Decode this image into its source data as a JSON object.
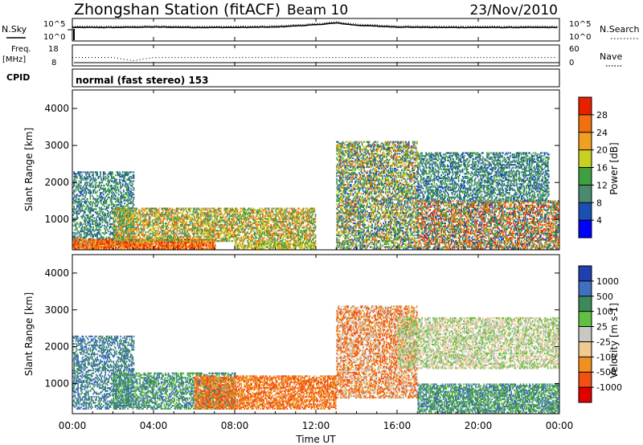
{
  "header": {
    "station": "Zhongshan Station (fitACF)",
    "beam": "Beam 10",
    "date": "23/Nov/2010",
    "cpid_label": "CPID",
    "mode_text": "normal (fast stereo) 153"
  },
  "noise_panel": {
    "left_label": "N.Sky",
    "right_label": "N.Search",
    "left_ticks": [
      "10^5",
      "10^0"
    ],
    "right_ticks": [
      "10^5",
      "10^0"
    ]
  },
  "freq_panel": {
    "left_label_1": "Freq.",
    "left_label_2": "[MHz]",
    "right_label": "Nave",
    "left_ticks": [
      "18",
      "8"
    ],
    "right_ticks": [
      "60",
      "0"
    ]
  },
  "x_axis": {
    "label": "Time UT",
    "ticks": [
      "00:00",
      "04:00",
      "08:00",
      "12:00",
      "16:00",
      "20:00",
      "00:00"
    ]
  },
  "y_axis": {
    "label": "Slant Range [km]",
    "ticks": [
      "1000",
      "2000",
      "3000",
      "4000"
    ]
  },
  "power_scale": {
    "label": "Power [dB]",
    "ticks": [
      "4",
      "8",
      "12",
      "16",
      "20",
      "24",
      "28"
    ],
    "colors": [
      "#0000ff",
      "#1a4fb4",
      "#4a8a6e",
      "#3ea03e",
      "#c8d020",
      "#f0a020",
      "#f07010",
      "#e82000"
    ]
  },
  "velocity_scale": {
    "label": "Velocity [m s-1]",
    "ticks": [
      "1000",
      "500",
      "100",
      "25",
      "-25",
      "-100",
      "-500",
      "-1000"
    ],
    "colors": [
      "#2040b0",
      "#4070c0",
      "#3c8a5a",
      "#60c040",
      "#c8c8c0",
      "#f0c890",
      "#f09020",
      "#f05010",
      "#e00000"
    ]
  },
  "chart_data": [
    {
      "type": "line",
      "title": "N.Sky / N.Search",
      "x": [
        0,
        2,
        4,
        6,
        8,
        10,
        12,
        13,
        14,
        16,
        18,
        20,
        22,
        24
      ],
      "series": [
        {
          "name": "N.Sky",
          "values": [
            3.0,
            3.0,
            3.1,
            3.0,
            3.0,
            3.1,
            3.6,
            4.0,
            3.5,
            3.1,
            3.0,
            3.0,
            3.0,
            3.0
          ]
        }
      ],
      "ylim": [
        0,
        5
      ]
    },
    {
      "type": "scatter",
      "title": "Freq / Nave",
      "x": [
        0,
        2,
        3,
        4,
        6,
        8,
        12,
        16,
        20,
        24
      ],
      "series": [
        {
          "name": "Freq.",
          "values": [
            12,
            12,
            10.5,
            12,
            12,
            12,
            12,
            12,
            12,
            12
          ]
        }
      ],
      "ylim": [
        8,
        18
      ]
    },
    {
      "type": "heatmap",
      "title": "Power",
      "xlabel": "Time UT",
      "ylabel": "Slant Range [km]",
      "xlim": [
        0,
        24
      ],
      "ylim": [
        180,
        4500
      ],
      "colorbar_label": "Power [dB]",
      "regions": [
        {
          "t0": 0.0,
          "t1": 3.0,
          "r0": 300,
          "r1": 2300,
          "density": 0.45,
          "levels": [
            4,
            8,
            12
          ]
        },
        {
          "t0": 0.0,
          "t1": 7.0,
          "r0": 200,
          "r1": 450,
          "density": 0.85,
          "levels": [
            20,
            24,
            28
          ]
        },
        {
          "t0": 2.0,
          "t1": 12.0,
          "r0": 400,
          "r1": 1300,
          "density": 0.6,
          "levels": [
            8,
            12,
            16,
            20,
            24
          ]
        },
        {
          "t0": 8.0,
          "t1": 12.0,
          "r0": 200,
          "r1": 400,
          "density": 0.7,
          "levels": [
            12,
            16,
            20
          ]
        },
        {
          "t0": 13.0,
          "t1": 17.0,
          "r0": 200,
          "r1": 3100,
          "density": 0.55,
          "levels": [
            4,
            8,
            12,
            16,
            24
          ]
        },
        {
          "t0": 17.0,
          "t1": 24.0,
          "r0": 200,
          "r1": 1500,
          "density": 0.6,
          "levels": [
            4,
            8,
            12,
            20,
            24,
            28
          ]
        },
        {
          "t0": 17.0,
          "t1": 23.5,
          "r0": 1500,
          "r1": 2800,
          "density": 0.5,
          "levels": [
            4,
            8,
            12
          ]
        }
      ]
    },
    {
      "type": "heatmap",
      "title": "Velocity",
      "xlabel": "Time UT",
      "ylabel": "Slant Range [km]",
      "xlim": [
        0,
        24
      ],
      "ylim": [
        180,
        4500
      ],
      "colorbar_label": "Velocity [m s-1]",
      "regions": [
        {
          "t0": 0.0,
          "t1": 3.0,
          "r0": 300,
          "r1": 2300,
          "density": 0.45,
          "levels": [
            1000,
            500
          ]
        },
        {
          "t0": 2.0,
          "t1": 8.0,
          "r0": 300,
          "r1": 1300,
          "density": 0.55,
          "levels": [
            1000,
            500,
            100
          ]
        },
        {
          "t0": 6.0,
          "t1": 13.0,
          "r0": 300,
          "r1": 1200,
          "density": 0.6,
          "levels": [
            -100,
            -500
          ]
        },
        {
          "t0": 13.0,
          "t1": 17.0,
          "r0": 600,
          "r1": 3100,
          "density": 0.55,
          "levels": [
            -100,
            -500,
            25
          ]
        },
        {
          "t0": 17.0,
          "t1": 24.0,
          "r0": 200,
          "r1": 1000,
          "density": 0.65,
          "levels": [
            100,
            500,
            1000
          ]
        },
        {
          "t0": 16.0,
          "t1": 24.0,
          "r0": 1400,
          "r1": 2800,
          "density": 0.55,
          "levels": [
            25,
            -25,
            100
          ]
        }
      ]
    }
  ]
}
